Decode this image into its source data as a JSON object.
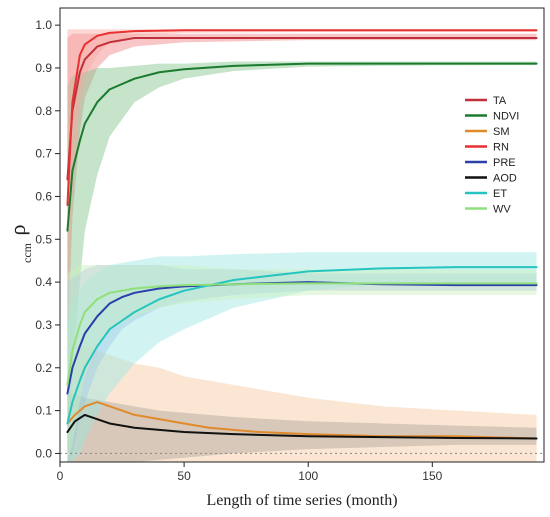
{
  "chart_data": {
    "type": "line",
    "title": "",
    "xlabel": "Length of time series (month)",
    "ylabel_main": "ρ",
    "ylabel_sub": "ccm",
    "xlim": [
      0,
      195
    ],
    "ylim": [
      -0.02,
      1.04
    ],
    "xticks": [
      0,
      50,
      100,
      150
    ],
    "yticks": [
      0.0,
      0.1,
      0.2,
      0.3,
      0.4,
      0.5,
      0.6,
      0.7,
      0.8,
      0.9,
      1.0
    ],
    "ytick_labels": [
      "0.0",
      "0.1",
      "0.2",
      "0.3",
      "0.4",
      "0.5",
      "0.6",
      "0.7",
      "0.8",
      "0.9",
      "1.0"
    ],
    "grid": false,
    "legend_position": "right",
    "zero_line": true,
    "series": [
      {
        "name": "TA",
        "color": "#c0303a",
        "band_color": "#f08080",
        "x": [
          3,
          5,
          8,
          10,
          15,
          20,
          30,
          50,
          100,
          150,
          192
        ],
        "y": [
          0.64,
          0.8,
          0.89,
          0.92,
          0.95,
          0.96,
          0.97,
          0.97,
          0.97,
          0.97,
          0.97
        ],
        "lower": [
          0.25,
          0.55,
          0.75,
          0.83,
          0.9,
          0.93,
          0.95,
          0.96,
          0.965,
          0.965,
          0.965
        ],
        "upper": [
          0.97,
          0.98,
          0.98,
          0.98,
          0.98,
          0.98,
          0.98,
          0.98,
          0.98,
          0.98,
          0.98
        ]
      },
      {
        "name": "NDVI",
        "color": "#1a7a2e",
        "band_color": "#7fc48a",
        "x": [
          3,
          5,
          8,
          10,
          15,
          20,
          30,
          40,
          50,
          70,
          100,
          150,
          192
        ],
        "y": [
          0.52,
          0.66,
          0.73,
          0.77,
          0.82,
          0.85,
          0.875,
          0.89,
          0.897,
          0.905,
          0.91,
          0.91,
          0.91
        ],
        "lower": [
          0.0,
          0.2,
          0.4,
          0.52,
          0.65,
          0.74,
          0.82,
          0.855,
          0.875,
          0.893,
          0.903,
          0.906,
          0.907
        ],
        "upper": [
          0.86,
          0.88,
          0.89,
          0.89,
          0.9,
          0.9,
          0.905,
          0.91,
          0.91,
          0.915,
          0.915,
          0.915,
          0.915
        ]
      },
      {
        "name": "SM",
        "color": "#e08a2c",
        "band_color": "#f7c89e",
        "x": [
          3,
          6,
          10,
          15,
          20,
          25,
          30,
          40,
          50,
          60,
          80,
          100,
          130,
          160,
          192
        ],
        "y": [
          0.07,
          0.09,
          0.11,
          0.12,
          0.11,
          0.1,
          0.09,
          0.08,
          0.07,
          0.06,
          0.05,
          0.045,
          0.04,
          0.04,
          0.035
        ],
        "lower": [
          -0.02,
          -0.02,
          -0.02,
          -0.02,
          -0.02,
          -0.02,
          -0.02,
          -0.02,
          -0.02,
          -0.02,
          -0.02,
          -0.02,
          -0.02,
          -0.02,
          -0.02
        ],
        "upper": [
          0.28,
          0.26,
          0.25,
          0.24,
          0.23,
          0.22,
          0.21,
          0.2,
          0.18,
          0.17,
          0.15,
          0.13,
          0.11,
          0.1,
          0.09
        ]
      },
      {
        "name": "RN",
        "color": "#e83030",
        "band_color": "#f9a6a0",
        "x": [
          3,
          5,
          8,
          10,
          15,
          20,
          30,
          50,
          100,
          150,
          192
        ],
        "y": [
          0.58,
          0.82,
          0.93,
          0.955,
          0.975,
          0.982,
          0.986,
          0.988,
          0.988,
          0.988,
          0.988
        ],
        "lower": [
          0.3,
          0.62,
          0.82,
          0.88,
          0.93,
          0.96,
          0.975,
          0.982,
          0.984,
          0.984,
          0.984
        ],
        "upper": [
          0.99,
          0.99,
          0.99,
          0.99,
          0.99,
          0.99,
          0.99,
          0.99,
          0.99,
          0.99,
          0.99
        ]
      },
      {
        "name": "PRE",
        "color": "#2a3fa8",
        "band_color": "#a9b4ee",
        "x": [
          3,
          5,
          8,
          10,
          15,
          20,
          25,
          30,
          40,
          50,
          70,
          100,
          130,
          160,
          192
        ],
        "y": [
          0.14,
          0.2,
          0.25,
          0.28,
          0.32,
          0.35,
          0.365,
          0.375,
          0.385,
          0.39,
          0.395,
          0.4,
          0.395,
          0.393,
          0.393
        ],
        "lower": [
          -0.02,
          0.0,
          0.08,
          0.12,
          0.2,
          0.25,
          0.29,
          0.31,
          0.34,
          0.355,
          0.37,
          0.38,
          0.38,
          0.38,
          0.38
        ],
        "upper": [
          0.4,
          0.41,
          0.42,
          0.43,
          0.44,
          0.44,
          0.44,
          0.44,
          0.44,
          0.43,
          0.43,
          0.42,
          0.42,
          0.42,
          0.42
        ]
      },
      {
        "name": "AOD",
        "color": "#111111",
        "band_color": "#aaa39a",
        "x": [
          3,
          6,
          10,
          15,
          20,
          30,
          40,
          50,
          70,
          100,
          130,
          160,
          192
        ],
        "y": [
          0.05,
          0.075,
          0.09,
          0.08,
          0.07,
          0.06,
          0.055,
          0.05,
          0.045,
          0.04,
          0.038,
          0.036,
          0.035
        ],
        "lower": [
          -0.02,
          -0.02,
          -0.02,
          -0.02,
          -0.02,
          -0.02,
          -0.015,
          -0.01,
          0.0,
          0.01,
          0.015,
          0.02,
          0.02
        ],
        "upper": [
          0.14,
          0.14,
          0.13,
          0.125,
          0.12,
          0.11,
          0.1,
          0.095,
          0.085,
          0.075,
          0.07,
          0.065,
          0.06
        ]
      },
      {
        "name": "ET",
        "color": "#26c4c0",
        "band_color": "#98e6e2",
        "x": [
          3,
          5,
          8,
          10,
          15,
          20,
          30,
          40,
          50,
          70,
          100,
          130,
          160,
          192
        ],
        "y": [
          0.07,
          0.12,
          0.17,
          0.2,
          0.25,
          0.29,
          0.33,
          0.36,
          0.38,
          0.405,
          0.425,
          0.432,
          0.435,
          0.435
        ],
        "lower": [
          -0.02,
          -0.02,
          0.0,
          0.03,
          0.09,
          0.14,
          0.21,
          0.26,
          0.29,
          0.34,
          0.38,
          0.395,
          0.4,
          0.4
        ],
        "upper": [
          0.3,
          0.35,
          0.38,
          0.4,
          0.42,
          0.44,
          0.45,
          0.46,
          0.46,
          0.465,
          0.47,
          0.47,
          0.47,
          0.47
        ]
      },
      {
        "name": "WV",
        "color": "#8fe07a",
        "band_color": "#c9efbd",
        "x": [
          3,
          5,
          8,
          10,
          15,
          20,
          30,
          40,
          50,
          70,
          100,
          130,
          160,
          192
        ],
        "y": [
          0.16,
          0.24,
          0.3,
          0.33,
          0.36,
          0.375,
          0.385,
          0.39,
          0.393,
          0.395,
          0.397,
          0.397,
          0.397,
          0.397
        ],
        "lower": [
          -0.02,
          0.02,
          0.12,
          0.18,
          0.25,
          0.29,
          0.32,
          0.34,
          0.35,
          0.36,
          0.37,
          0.37,
          0.37,
          0.37
        ],
        "upper": [
          0.42,
          0.43,
          0.44,
          0.44,
          0.44,
          0.44,
          0.44,
          0.44,
          0.44,
          0.43,
          0.43,
          0.43,
          0.43,
          0.43
        ]
      }
    ]
  }
}
